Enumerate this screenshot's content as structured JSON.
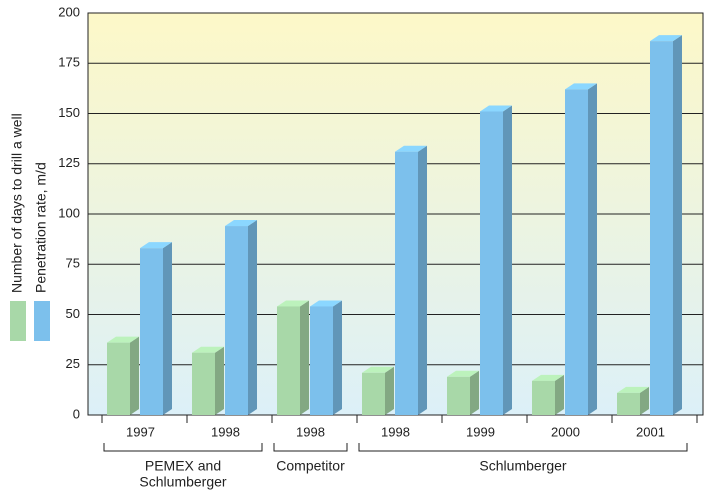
{
  "chart_data": {
    "type": "bar3d",
    "categories": [
      "1997",
      "1998",
      "1998",
      "1998",
      "1999",
      "2000",
      "2001"
    ],
    "groups": [
      {
        "label": [
          "PEMEX and",
          "Schlumberger"
        ],
        "start": 0,
        "end": 1
      },
      {
        "label": [
          "Competitor"
        ],
        "start": 2,
        "end": 2
      },
      {
        "label": [
          "Schlumberger"
        ],
        "start": 3,
        "end": 6
      }
    ],
    "series": [
      {
        "name": "Number of days to drill a well",
        "color": "#a8d8a8",
        "values": [
          36,
          31,
          54,
          21,
          19,
          17,
          11
        ]
      },
      {
        "name": "Penetration rate, m/d",
        "color": "#7cc0ec",
        "values": [
          83,
          94,
          54,
          131,
          151,
          162,
          186
        ]
      }
    ],
    "ylim": [
      0,
      200
    ],
    "yticks": [
      0,
      25,
      50,
      75,
      100,
      125,
      150,
      175,
      200
    ],
    "grid": true
  }
}
